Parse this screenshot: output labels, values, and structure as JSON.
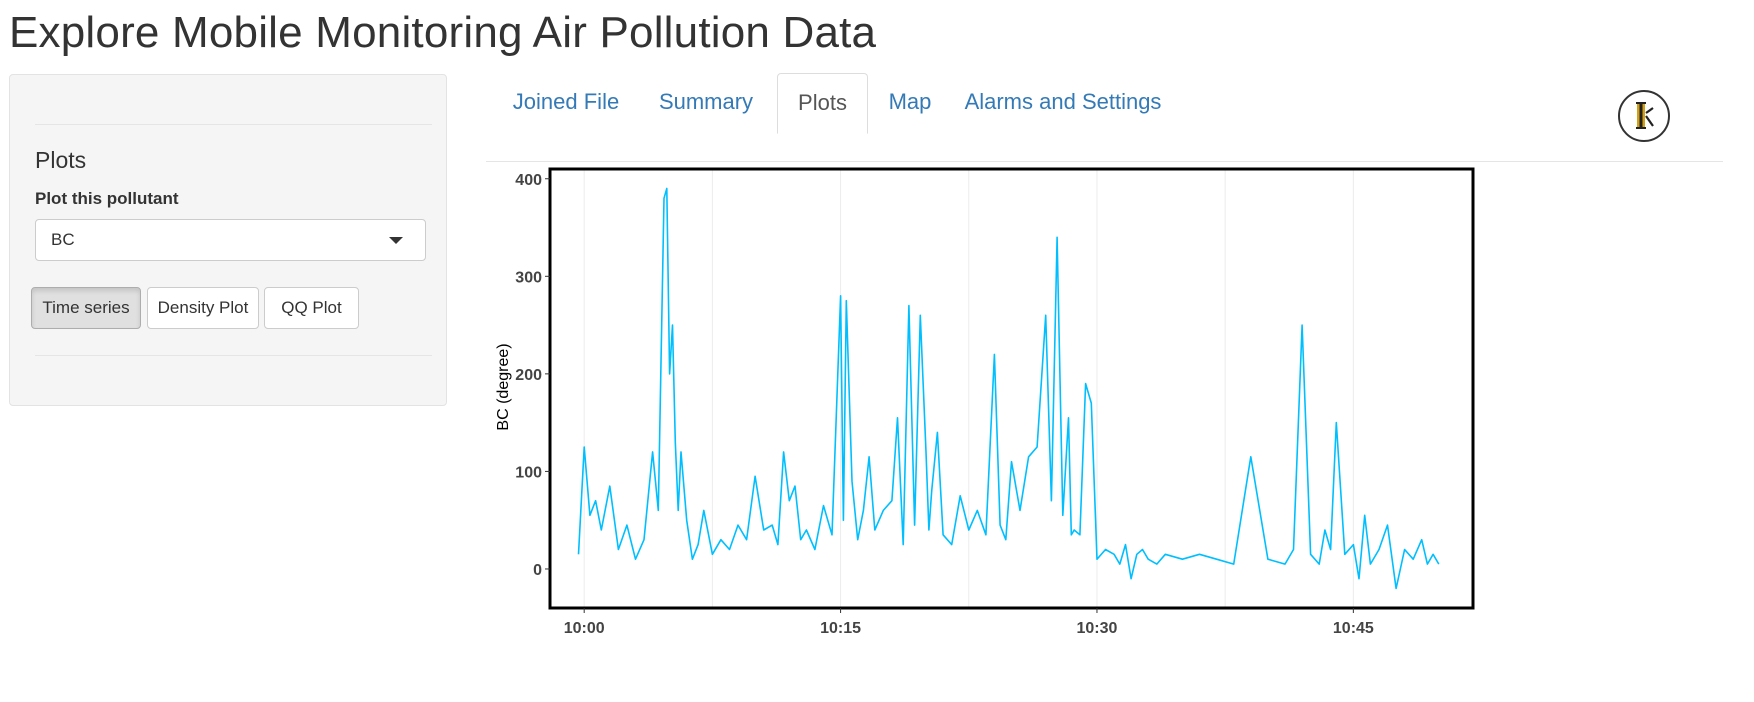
{
  "page": {
    "title": "Explore Mobile Monitoring Air Pollution Data"
  },
  "sidebar": {
    "heading": "Plots",
    "select_label": "Plot this pollutant",
    "select_value": "BC",
    "buttons": [
      {
        "label": "Time series",
        "active": true
      },
      {
        "label": "Density Plot",
        "active": false
      },
      {
        "label": "QQ Plot",
        "active": false
      }
    ]
  },
  "tabs": [
    {
      "label": "Joined File",
      "active": false
    },
    {
      "label": "Summary",
      "active": false
    },
    {
      "label": "Plots",
      "active": true
    },
    {
      "label": "Map",
      "active": false
    },
    {
      "label": "Alarms and Settings",
      "active": false
    }
  ],
  "logo": {
    "icon": "ik-logo-icon"
  },
  "colors": {
    "line": "#00bfff",
    "link": "#337ab7"
  },
  "chart_data": {
    "type": "line",
    "title": "",
    "xlabel": "",
    "ylabel": "BC (degree)",
    "xlim": [
      "09:58",
      "10:52"
    ],
    "ylim": [
      -40,
      410
    ],
    "x_ticks": [
      "10:00",
      "10:15",
      "10:30",
      "10:45"
    ],
    "y_ticks": [
      0,
      100,
      200,
      300,
      400
    ],
    "grid": true,
    "series": [
      {
        "color": "#00bfff",
        "x": [
          "09:59:40",
          "10:00:00",
          "10:00:20",
          "10:00:40",
          "10:01:00",
          "10:01:30",
          "10:02:00",
          "10:02:30",
          "10:03:00",
          "10:03:30",
          "10:04:00",
          "10:04:20",
          "10:04:40",
          "10:04:50",
          "10:05:00",
          "10:05:10",
          "10:05:20",
          "10:05:30",
          "10:05:40",
          "10:06:00",
          "10:06:20",
          "10:06:40",
          "10:07:00",
          "10:07:30",
          "10:08:00",
          "10:08:30",
          "10:09:00",
          "10:09:30",
          "10:10:00",
          "10:10:30",
          "10:11:00",
          "10:11:20",
          "10:11:40",
          "10:12:00",
          "10:12:20",
          "10:12:40",
          "10:13:00",
          "10:13:30",
          "10:14:00",
          "10:14:30",
          "10:15:00",
          "10:15:10",
          "10:15:20",
          "10:15:40",
          "10:16:00",
          "10:16:20",
          "10:16:40",
          "10:17:00",
          "10:17:30",
          "10:18:00",
          "10:18:20",
          "10:18:40",
          "10:19:00",
          "10:19:20",
          "10:19:40",
          "10:20:00",
          "10:20:10",
          "10:20:20",
          "10:20:40",
          "10:21:00",
          "10:21:30",
          "10:22:00",
          "10:22:30",
          "10:23:00",
          "10:23:30",
          "10:24:00",
          "10:24:20",
          "10:24:40",
          "10:25:00",
          "10:25:30",
          "10:26:00",
          "10:26:30",
          "10:27:00",
          "10:27:20",
          "10:27:40",
          "10:28:00",
          "10:28:20",
          "10:28:30",
          "10:28:40",
          "10:29:00",
          "10:29:20",
          "10:29:40",
          "10:30:00",
          "10:30:30",
          "10:31:00",
          "10:31:20",
          "10:31:40",
          "10:32:00",
          "10:32:20",
          "10:32:40",
          "10:33:00",
          "10:33:30",
          "10:34:00",
          "10:35:00",
          "10:36:00",
          "10:37:00",
          "10:38:00",
          "10:39:00",
          "10:40:00",
          "10:41:00",
          "10:41:30",
          "10:42:00",
          "10:42:30",
          "10:43:00",
          "10:43:20",
          "10:43:40",
          "10:44:00",
          "10:44:30",
          "10:45:00",
          "10:45:20",
          "10:45:40",
          "10:46:00",
          "10:46:30",
          "10:47:00",
          "10:47:30",
          "10:48:00",
          "10:48:30",
          "10:49:00",
          "10:49:20",
          "10:49:40",
          "10:50:00"
        ],
        "y": [
          15,
          125,
          55,
          70,
          40,
          85,
          20,
          45,
          10,
          30,
          120,
          60,
          380,
          390,
          200,
          250,
          130,
          60,
          120,
          50,
          10,
          25,
          60,
          15,
          30,
          20,
          45,
          30,
          95,
          40,
          45,
          25,
          120,
          70,
          85,
          30,
          40,
          20,
          65,
          35,
          280,
          50,
          275,
          90,
          30,
          60,
          115,
          40,
          60,
          70,
          155,
          25,
          270,
          45,
          260,
          120,
          40,
          80,
          140,
          35,
          25,
          75,
          40,
          60,
          35,
          220,
          45,
          30,
          110,
          60,
          115,
          125,
          260,
          70,
          340,
          55,
          155,
          35,
          40,
          35,
          190,
          170,
          10,
          20,
          15,
          5,
          25,
          -10,
          15,
          20,
          10,
          5,
          15,
          10,
          15,
          10,
          5,
          115,
          10,
          5,
          20,
          250,
          15,
          5,
          40,
          20,
          150,
          15,
          25,
          -10,
          55,
          5,
          20,
          45,
          -20,
          20,
          10,
          30,
          5,
          15,
          5
        ]
      }
    ]
  }
}
